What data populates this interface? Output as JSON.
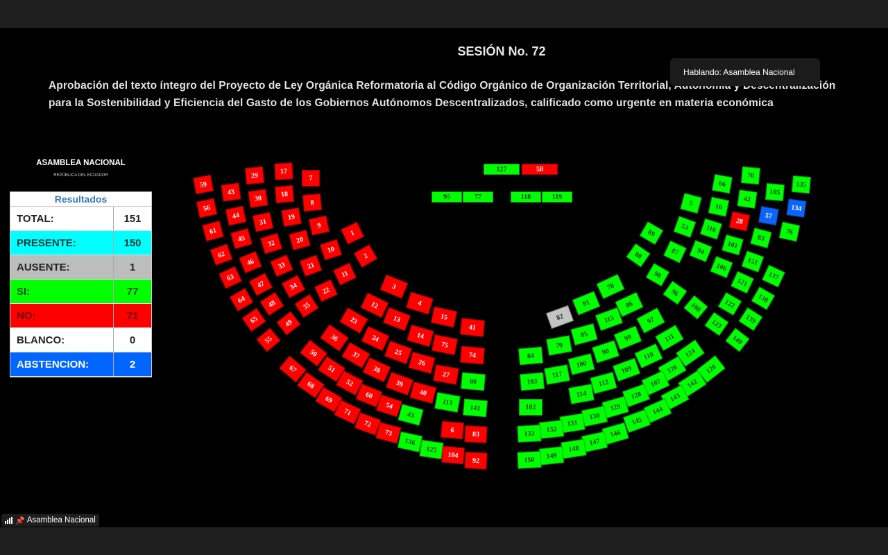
{
  "header": {
    "title": "SESIÓN No. 72",
    "description_line1": "Aprobación del texto íntegro del Proyecto de Ley Orgánica Reformatoria al Código Orgánico de Organización Territorial, Autonomía y Descentralización",
    "description_line2": "para la Sostenibilidad y Eficiencia del Gasto de los Gobiernos Autónomos Descentralizados, calificado como urgente en materia económica"
  },
  "speaking": "Hablando: Asamblea Nacional",
  "logo": {
    "name": "ASAMBLEA NACIONAL",
    "subtitle": "REPÚBLICA DEL ECUADOR"
  },
  "results": {
    "title": "Resultados",
    "rows": [
      {
        "label": "TOTAL:",
        "value": "151",
        "bg": "#ffffff",
        "fg": "#222222"
      },
      {
        "label": "PRESENTE:",
        "value": "150",
        "bg": "#00ffff",
        "fg": "#0a3a3a"
      },
      {
        "label": "AUSENTE:",
        "value": "1",
        "bg": "#bdbdbd",
        "fg": "#222222"
      },
      {
        "label": "SI:",
        "value": "77",
        "bg": "#00ff00",
        "fg": "#0a4a0a"
      },
      {
        "label": "NO:",
        "value": "71",
        "bg": "#ff0000",
        "fg": "#6a0000"
      },
      {
        "label": "BLANCO:",
        "value": "0",
        "bg": "#ffffff",
        "fg": "#222222"
      },
      {
        "label": "ABSTENCION:",
        "value": "2",
        "bg": "#0066ff",
        "fg": "#ffffff"
      }
    ]
  },
  "vote_colors": {
    "si": "#00ff00",
    "no": "#ff0000",
    "ausente": "#c4c4c4",
    "abstencion": "#0a64ff"
  },
  "seats": [
    [
      "59",
      "no"
    ],
    [
      "56",
      "no"
    ],
    [
      "61",
      "no"
    ],
    [
      "62",
      "no"
    ],
    [
      "63",
      "no"
    ],
    [
      "64",
      "no"
    ],
    [
      "65",
      "no"
    ],
    [
      "55",
      "no"
    ],
    [
      "43",
      "no"
    ],
    [
      "44",
      "no"
    ],
    [
      "45",
      "no"
    ],
    [
      "46",
      "no"
    ],
    [
      "47",
      "no"
    ],
    [
      "48",
      "no"
    ],
    [
      "49",
      "no"
    ],
    [
      "29",
      "no"
    ],
    [
      "30",
      "no"
    ],
    [
      "31",
      "no"
    ],
    [
      "32",
      "no"
    ],
    [
      "33",
      "no"
    ],
    [
      "34",
      "no"
    ],
    [
      "35",
      "no"
    ],
    [
      "17",
      "no"
    ],
    [
      "18",
      "no"
    ],
    [
      "19",
      "no"
    ],
    [
      "20",
      "no"
    ],
    [
      "21",
      "no"
    ],
    [
      "22",
      "no"
    ],
    [
      "7",
      "no"
    ],
    [
      "8",
      "no"
    ],
    [
      "9",
      "no"
    ],
    [
      "10",
      "no"
    ],
    [
      "11",
      "no"
    ],
    [
      "1",
      "no"
    ],
    [
      "2",
      "no"
    ],
    [
      "3",
      "no"
    ],
    [
      "4",
      "no"
    ],
    [
      "15",
      "no"
    ],
    [
      "41",
      "no"
    ],
    [
      "12",
      "no"
    ],
    [
      "13",
      "no"
    ],
    [
      "14",
      "no"
    ],
    [
      "75",
      "no"
    ],
    [
      "74",
      "no"
    ],
    [
      "23",
      "no"
    ],
    [
      "24",
      "no"
    ],
    [
      "25",
      "no"
    ],
    [
      "26",
      "no"
    ],
    [
      "27",
      "no"
    ],
    [
      "80",
      "si"
    ],
    [
      "36",
      "no"
    ],
    [
      "37",
      "no"
    ],
    [
      "38",
      "no"
    ],
    [
      "39",
      "no"
    ],
    [
      "40",
      "no"
    ],
    [
      "113",
      "si"
    ],
    [
      "141",
      "si"
    ],
    [
      "50",
      "no"
    ],
    [
      "51",
      "no"
    ],
    [
      "52",
      "no"
    ],
    [
      "60",
      "no"
    ],
    [
      "54",
      "no"
    ],
    [
      "43",
      "si"
    ],
    [
      "67",
      "no"
    ],
    [
      "68",
      "no"
    ],
    [
      "69",
      "no"
    ],
    [
      "71",
      "no"
    ],
    [
      "72",
      "no"
    ],
    [
      "73",
      "no"
    ],
    [
      "136",
      "si"
    ],
    [
      "125",
      "si"
    ],
    [
      "104",
      "no"
    ],
    [
      "92",
      "no"
    ],
    [
      "6",
      "no"
    ],
    [
      "83",
      "no"
    ],
    [
      "127",
      "si"
    ],
    [
      "58",
      "no"
    ],
    [
      "95",
      "si"
    ],
    [
      "77",
      "si"
    ],
    [
      "118",
      "si"
    ],
    [
      "119",
      "si"
    ],
    [
      "82",
      "ausente"
    ],
    [
      "91",
      "si"
    ],
    [
      "78",
      "si"
    ],
    [
      "86",
      "si"
    ],
    [
      "115",
      "si"
    ],
    [
      "85",
      "si"
    ],
    [
      "79",
      "si"
    ],
    [
      "84",
      "si"
    ],
    [
      "97",
      "si"
    ],
    [
      "99",
      "si"
    ],
    [
      "90",
      "si"
    ],
    [
      "100",
      "si"
    ],
    [
      "117",
      "si"
    ],
    [
      "103",
      "si"
    ],
    [
      "111",
      "si"
    ],
    [
      "110",
      "si"
    ],
    [
      "109",
      "si"
    ],
    [
      "112",
      "si"
    ],
    [
      "114",
      "si"
    ],
    [
      "102",
      "si"
    ],
    [
      "124",
      "si"
    ],
    [
      "126",
      "si"
    ],
    [
      "107",
      "si"
    ],
    [
      "128",
      "si"
    ],
    [
      "129",
      "si"
    ],
    [
      "130",
      "si"
    ],
    [
      "131",
      "si"
    ],
    [
      "132",
      "si"
    ],
    [
      "133",
      "si"
    ],
    [
      "120",
      "si"
    ],
    [
      "142",
      "si"
    ],
    [
      "143",
      "si"
    ],
    [
      "144",
      "si"
    ],
    [
      "145",
      "si"
    ],
    [
      "146",
      "si"
    ],
    [
      "147",
      "si"
    ],
    [
      "148",
      "si"
    ],
    [
      "149",
      "si"
    ],
    [
      "150",
      "si"
    ],
    [
      "89",
      "si"
    ],
    [
      "88",
      "si"
    ],
    [
      "5",
      "si"
    ],
    [
      "53",
      "si"
    ],
    [
      "87",
      "si"
    ],
    [
      "98",
      "si"
    ],
    [
      "96",
      "si"
    ],
    [
      "108",
      "si"
    ],
    [
      "66",
      "si"
    ],
    [
      "16",
      "si"
    ],
    [
      "116",
      "si"
    ],
    [
      "94",
      "si"
    ],
    [
      "70",
      "si"
    ],
    [
      "42",
      "si"
    ],
    [
      "28",
      "no"
    ],
    [
      "101",
      "si"
    ],
    [
      "106",
      "si"
    ],
    [
      "105",
      "si"
    ],
    [
      "57",
      "abstencion"
    ],
    [
      "83",
      "si"
    ],
    [
      "151",
      "si"
    ],
    [
      "121",
      "si"
    ],
    [
      "122",
      "si"
    ],
    [
      "123",
      "si"
    ],
    [
      "135",
      "si"
    ],
    [
      "134",
      "abstencion"
    ],
    [
      "76",
      "si"
    ],
    [
      "137",
      "si"
    ],
    [
      "138",
      "si"
    ],
    [
      "139",
      "si"
    ],
    [
      "140",
      "si"
    ]
  ],
  "taskbar": {
    "label": "Asamblea Nacional"
  }
}
